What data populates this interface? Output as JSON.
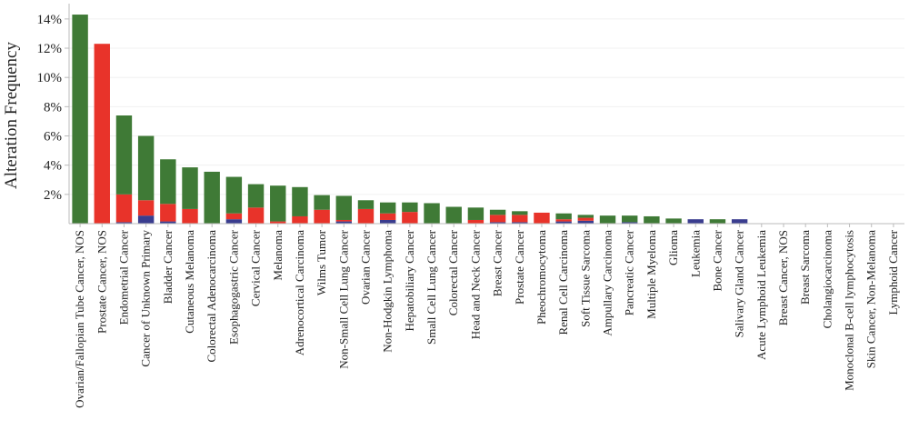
{
  "chart_data": {
    "type": "bar",
    "stacked": true,
    "ylabel": "Alteration Frequency",
    "xlabel": "",
    "title": "",
    "ylim": [
      0,
      14.8
    ],
    "yticks": [
      2,
      4,
      6,
      8,
      10,
      12,
      14
    ],
    "ytick_labels": [
      "2%",
      "4%",
      "6%",
      "8%",
      "10%",
      "12%",
      "14%"
    ],
    "grid": true,
    "categories": [
      "Ovarian/Fallopian Tube Cancer, NOS",
      "Prostate Cancer, NOS",
      "Endometrial Cancer",
      "Cancer of Unknown Primary",
      "Bladder Cancer",
      "Cutaneous Melanoma",
      "Colorectal Adenocarcinoma",
      "Esophagogastric Cancer",
      "Cervical Cancer",
      "Melanoma",
      "Adrenocortical Carcinoma",
      "Wilms Tumor",
      "Non-Small Cell Lung Cancer",
      "Ovarian Cancer",
      "Non-Hodgkin Lymphoma",
      "Hepatobiliary Cancer",
      "Small Cell Lung Cancer",
      "Colorectal Cancer",
      "Head and Neck Cancer",
      "Breast Cancer",
      "Prostate Cancer",
      "Pheochromocytoma",
      "Renal Cell Carcinoma",
      "Soft Tissue Sarcoma",
      "Ampullary Carcinoma",
      "Pancreatic Cancer",
      "Multiple Myeloma",
      "Glioma",
      "Leukemia",
      "Bone Cancer",
      "Salivary Gland Cancer",
      "Acute Lymphoid Leukemia",
      "Breast Cancer, NOS",
      "Breast Sarcoma",
      "Cholangiocarcinoma",
      "Monoclonal B-cell lymphocytosis",
      "Skin Cancer, Non-Melanoma",
      "Lymphoid Cancer"
    ],
    "series": [
      {
        "color": "#3a3d8f",
        "values": [
          0,
          0,
          0.1,
          0.55,
          0.15,
          0,
          0,
          0.3,
          0,
          0,
          0,
          0,
          0.15,
          0,
          0.25,
          0,
          0,
          0,
          0,
          0.1,
          0.1,
          0,
          0.15,
          0.2,
          0,
          0.1,
          0,
          0,
          0.3,
          0,
          0.3,
          0,
          0,
          0,
          0,
          0,
          0,
          0
        ]
      },
      {
        "color": "#e8332a",
        "values": [
          0,
          12.3,
          1.9,
          1.05,
          1.2,
          1.0,
          0,
          0.4,
          1.1,
          0.15,
          0.5,
          0.95,
          0.1,
          1.0,
          0.45,
          0.8,
          0,
          0,
          0.25,
          0.5,
          0.5,
          0.75,
          0.15,
          0.2,
          0,
          0,
          0,
          0,
          0,
          0,
          0,
          0,
          0,
          0,
          0,
          0,
          0,
          0
        ]
      },
      {
        "color": "#3f7a36",
        "values": [
          14.3,
          0,
          5.4,
          4.4,
          3.05,
          2.85,
          3.55,
          2.5,
          1.6,
          2.45,
          2.0,
          1.0,
          1.65,
          0.6,
          0.75,
          0.65,
          1.4,
          1.15,
          0.85,
          0.35,
          0.25,
          0,
          0.4,
          0.2,
          0.55,
          0.45,
          0.5,
          0.35,
          0,
          0.3,
          0,
          0,
          0,
          0,
          0,
          0,
          0,
          0
        ]
      }
    ]
  }
}
